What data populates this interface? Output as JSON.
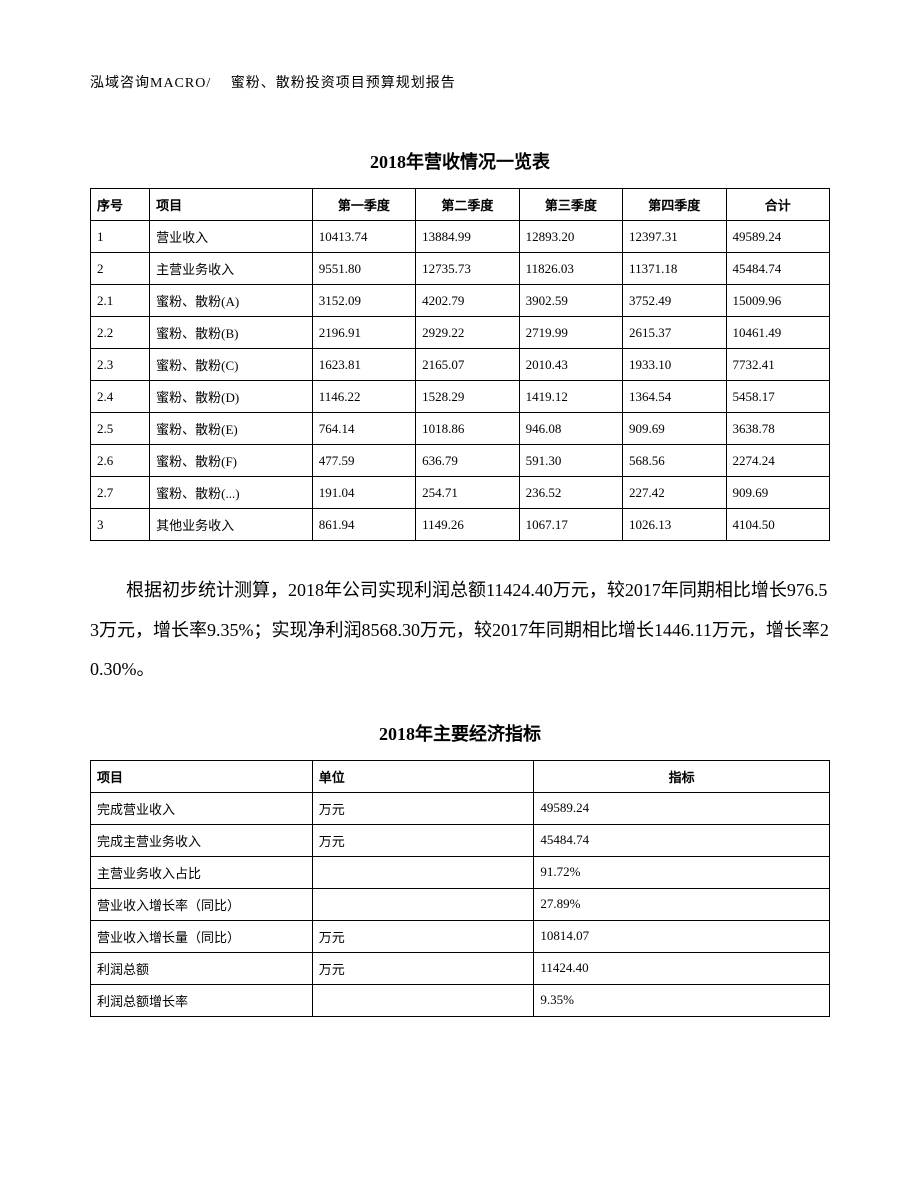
{
  "header": "泓域咨询MACRO/　 蜜粉、散粉投资项目预算规划报告",
  "table1": {
    "title": "2018年营收情况一览表",
    "columns": [
      "序号",
      "项目",
      "第一季度",
      "第二季度",
      "第三季度",
      "第四季度",
      "合计"
    ],
    "rows": [
      [
        "1",
        "营业收入",
        "10413.74",
        "13884.99",
        "12893.20",
        "12397.31",
        "49589.24"
      ],
      [
        "2",
        "主营业务收入",
        "9551.80",
        "12735.73",
        "11826.03",
        "11371.18",
        "45484.74"
      ],
      [
        "2.1",
        "蜜粉、散粉(A)",
        "3152.09",
        "4202.79",
        "3902.59",
        "3752.49",
        "15009.96"
      ],
      [
        "2.2",
        "蜜粉、散粉(B)",
        "2196.91",
        "2929.22",
        "2719.99",
        "2615.37",
        "10461.49"
      ],
      [
        "2.3",
        "蜜粉、散粉(C)",
        "1623.81",
        "2165.07",
        "2010.43",
        "1933.10",
        "7732.41"
      ],
      [
        "2.4",
        "蜜粉、散粉(D)",
        "1146.22",
        "1528.29",
        "1419.12",
        "1364.54",
        "5458.17"
      ],
      [
        "2.5",
        "蜜粉、散粉(E)",
        "764.14",
        "1018.86",
        "946.08",
        "909.69",
        "3638.78"
      ],
      [
        "2.6",
        "蜜粉、散粉(F)",
        "477.59",
        "636.79",
        "591.30",
        "568.56",
        "2274.24"
      ],
      [
        "2.7",
        "蜜粉、散粉(...)",
        "191.04",
        "254.71",
        "236.52",
        "227.42",
        "909.69"
      ],
      [
        "3",
        "其他业务收入",
        "861.94",
        "1149.26",
        "1067.17",
        "1026.13",
        "4104.50"
      ]
    ]
  },
  "paragraph": "根据初步统计测算，2018年公司实现利润总额11424.40万元，较2017年同期相比增长976.53万元，增长率9.35%；实现净利润8568.30万元，较2017年同期相比增长1446.11万元，增长率20.30%。",
  "table2": {
    "title": "2018年主要经济指标",
    "columns": [
      "项目",
      "单位",
      "指标"
    ],
    "rows": [
      [
        "完成营业收入",
        "万元",
        "49589.24"
      ],
      [
        "完成主营业务收入",
        "万元",
        "45484.74"
      ],
      [
        "主营业务收入占比",
        "",
        "91.72%"
      ],
      [
        "营业收入增长率（同比）",
        "",
        "27.89%"
      ],
      [
        "营业收入增长量（同比）",
        "万元",
        "10814.07"
      ],
      [
        "利润总额",
        "万元",
        "11424.40"
      ],
      [
        "利润总额增长率",
        "",
        "9.35%"
      ]
    ]
  }
}
